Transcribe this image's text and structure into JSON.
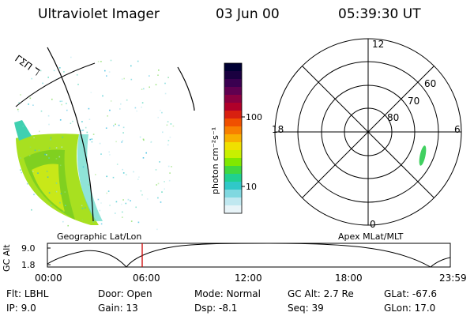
{
  "header": {
    "instrument": "Ultraviolet Imager",
    "date": "03 Jun 00",
    "time": "05:39:30 UT"
  },
  "geo_panel": {
    "label": "Geographic Lat/Lon",
    "corner_label": "ΓΣΠ ℸ"
  },
  "colorbar": {
    "unit_label": "photon cm⁻²s⁻¹",
    "ticks": [
      "100",
      "10"
    ],
    "colors": [
      "#000033",
      "#1a0040",
      "#3a0050",
      "#600050",
      "#8a0040",
      "#b0002a",
      "#d82010",
      "#f05000",
      "#f88000",
      "#f8b000",
      "#f0e000",
      "#c8f000",
      "#80e800",
      "#40d840",
      "#20d090",
      "#30c8c8",
      "#80d8e0",
      "#c0e8f0",
      "#e8f4f8"
    ]
  },
  "polar_panel": {
    "label": "Apex MLat/MLT",
    "mlt_labels": {
      "top": "12",
      "left": "18",
      "right": "6",
      "bottom": "0"
    },
    "lat_labels": [
      "60",
      "70",
      "80"
    ]
  },
  "timeline": {
    "ylabel": "GC Alt",
    "y_ticks": [
      "9.0",
      "1.8"
    ],
    "x_ticks": [
      "00:00",
      "06:00",
      "12:00",
      "18:00",
      "23:59"
    ],
    "marker_color": "#cc0000"
  },
  "footer": {
    "flt_label": "Flt:",
    "flt_value": "LBHL",
    "ip_label": "IP:",
    "ip_value": "9.0",
    "door_label": "Door:",
    "door_value": "Open",
    "gain_label": "Gain:",
    "gain_value": "13",
    "mode_label": "Mode:",
    "mode_value": "Normal",
    "dsp_label": "Dsp:",
    "dsp_value": "-8.1",
    "gcalt_label": "GC Alt:",
    "gcalt_value": "2.7 Re",
    "seq_label": "Seq:",
    "seq_value": "39",
    "glat_label": "GLat:",
    "glat_value": "-67.6",
    "glon_label": "GLon:",
    "glon_value": "17.0"
  }
}
